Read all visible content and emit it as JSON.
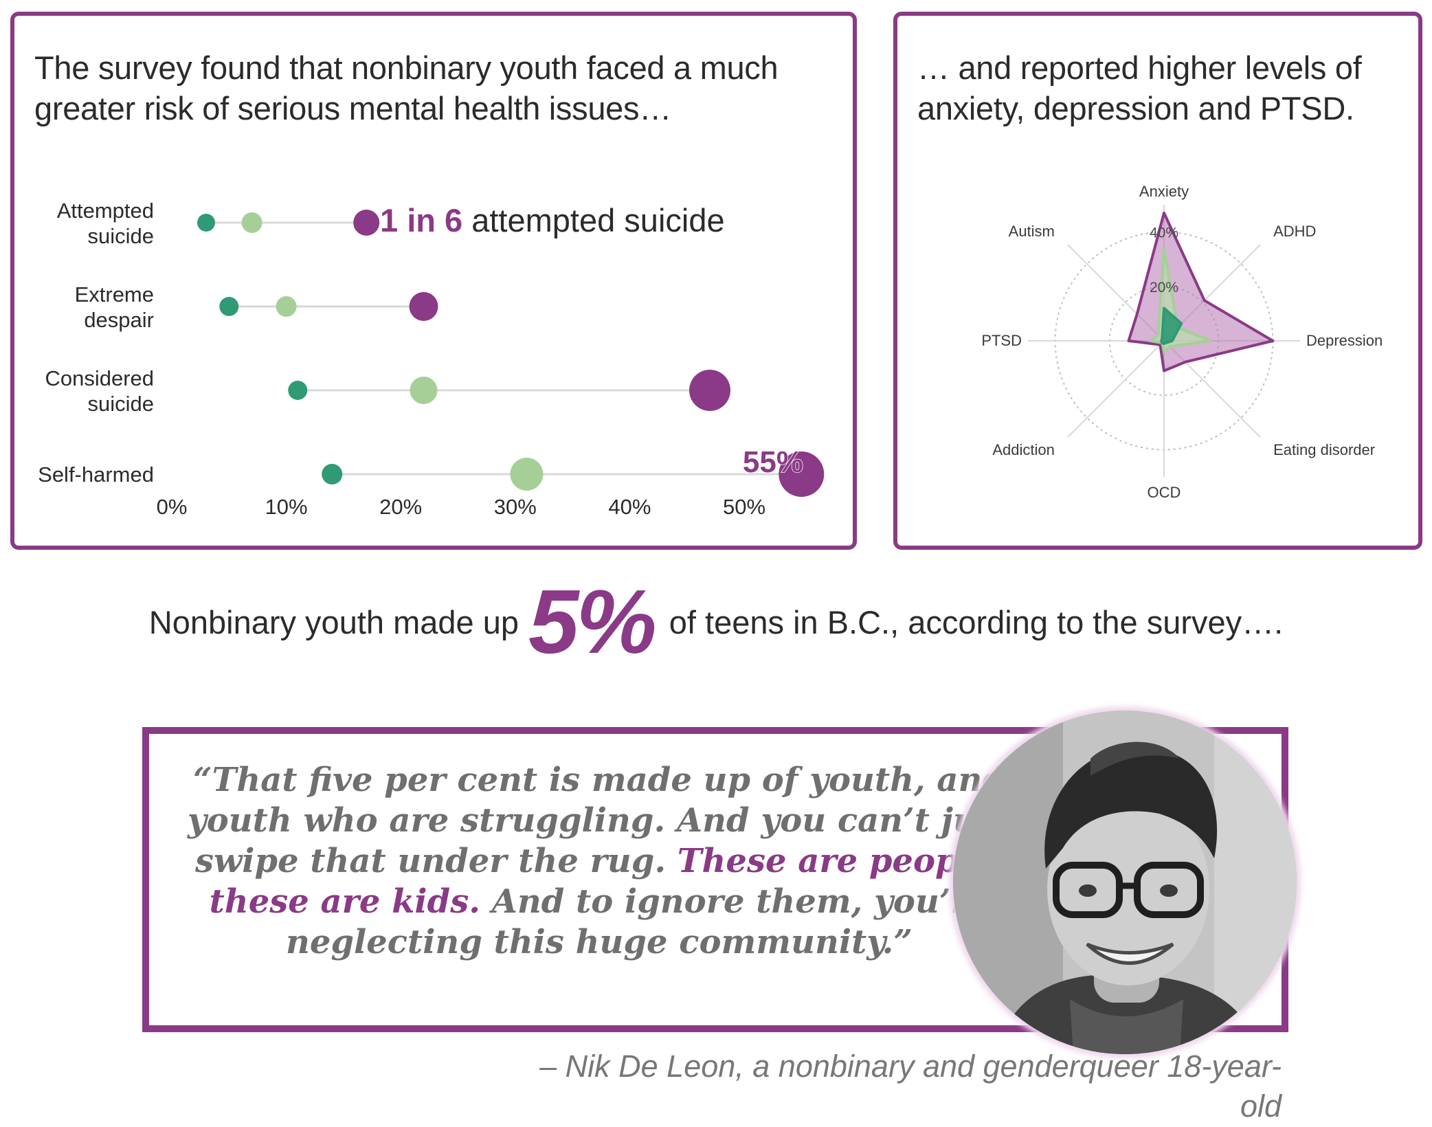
{
  "left_panel": {
    "title": "The survey found that nonbinary youth faced a much greater risk of serious mental health issues…",
    "annotations": {
      "one_in_six_number": "1 in 6",
      "one_in_six_text": " attempted suicide",
      "self_harmed_value": "55%"
    }
  },
  "right_panel": {
    "title": "… and reported higher levels of anxiety, depression and PTSD."
  },
  "stat": {
    "before": "Nonbinary youth made up",
    "value": "5%",
    "after": "of teens in B.C., according to the survey…."
  },
  "quote": {
    "part1": "“That five per cent is made up of youth, and youth who are struggling. And you can’t just swipe that under the rug. ",
    "emphasis": "These are people, these are kids.",
    "part2": " And to ignore them, you’re neglecting this huge community.”",
    "attribution": "– Nik De Leon, a nonbinary and genderqueer 18-year-old"
  },
  "colors": {
    "purple": "#8a3a86",
    "purple_light": "#a766a4",
    "dark_green": "#2f9a74",
    "light_green": "#a6cf98",
    "grid": "#d8d8d8",
    "text": "#2b2b2b"
  },
  "chart_data": [
    {
      "type": "dumbbell",
      "categories": [
        [
          "Attempted",
          "suicide"
        ],
        [
          "Extreme",
          "despair"
        ],
        [
          "Considered",
          "suicide"
        ],
        [
          "Self-harmed"
        ]
      ],
      "series": [
        {
          "values": [
            3,
            5,
            11,
            14
          ],
          "color": "#2f9a74",
          "size": "small"
        },
        {
          "values": [
            7,
            10,
            22,
            31
          ],
          "color": "#a6cf98",
          "size": "medium"
        },
        {
          "values": [
            17,
            22,
            47,
            55
          ],
          "color": "#8a3a86",
          "size": "large"
        }
      ],
      "xlim": [
        0,
        55
      ],
      "xticks": [
        "0%",
        "10%",
        "20%",
        "30%",
        "40%",
        "50%"
      ],
      "xtick_values": [
        0,
        10,
        20,
        30,
        40,
        50
      ]
    },
    {
      "type": "radar",
      "axes": [
        "Anxiety",
        "ADHD",
        "Depression",
        "Eating disorder",
        "OCD",
        "Addiction",
        "PTSD",
        "Autism"
      ],
      "radial_ticks": [
        "0%",
        "20%",
        "40%"
      ],
      "radial_tick_values": [
        0,
        20,
        40
      ],
      "rmax": 50,
      "series": [
        {
          "values": [
            47,
            21,
            40,
            11,
            11,
            2,
            13,
            14
          ],
          "color": "#8a3a86"
        },
        {
          "values": [
            34,
            7,
            17,
            3,
            4,
            1,
            5,
            3
          ],
          "color": "#a6cf98"
        },
        {
          "values": [
            12,
            9,
            3,
            1,
            1,
            1,
            1,
            1
          ],
          "color": "#2f9a74"
        }
      ]
    }
  ]
}
